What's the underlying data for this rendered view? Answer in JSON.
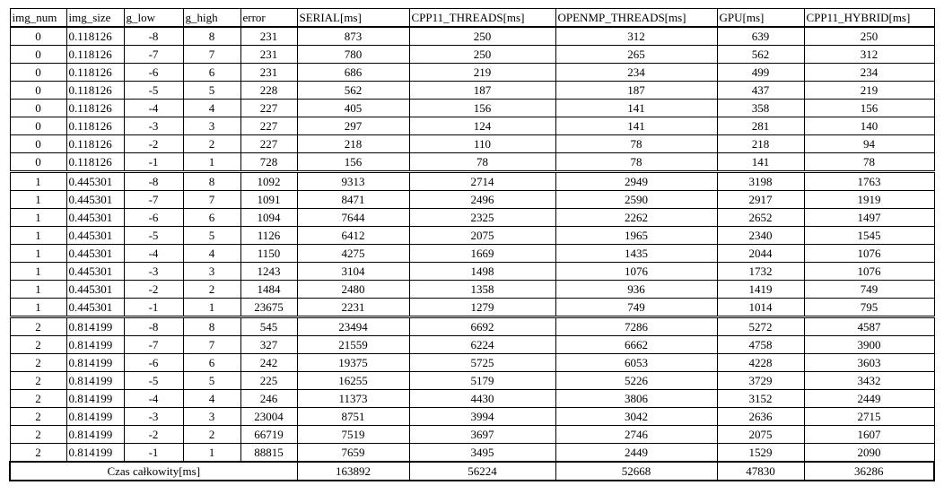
{
  "columns": [
    "img_num",
    "img_size",
    "g_low",
    "g_high",
    "error",
    "SERIAL[ms]",
    "CPP11_THREADS[ms]",
    "OPENMP_THREADS[ms]",
    "GPU[ms]",
    "CPP11_HYBRID[ms]"
  ],
  "rows": [
    [
      "0",
      "0.118126",
      "-8",
      "8",
      "231",
      "873",
      "250",
      "312",
      "639",
      "250"
    ],
    [
      "0",
      "0.118126",
      "-7",
      "7",
      "231",
      "780",
      "250",
      "265",
      "562",
      "312"
    ],
    [
      "0",
      "0.118126",
      "-6",
      "6",
      "231",
      "686",
      "219",
      "234",
      "499",
      "234"
    ],
    [
      "0",
      "0.118126",
      "-5",
      "5",
      "228",
      "562",
      "187",
      "187",
      "437",
      "219"
    ],
    [
      "0",
      "0.118126",
      "-4",
      "4",
      "227",
      "405",
      "156",
      "141",
      "358",
      "156"
    ],
    [
      "0",
      "0.118126",
      "-3",
      "3",
      "227",
      "297",
      "124",
      "141",
      "281",
      "140"
    ],
    [
      "0",
      "0.118126",
      "-2",
      "2",
      "227",
      "218",
      "110",
      "78",
      "218",
      "94"
    ],
    [
      "0",
      "0.118126",
      "-1",
      "1",
      "728",
      "156",
      "78",
      "78",
      "141",
      "78"
    ],
    [
      "1",
      "0.445301",
      "-8",
      "8",
      "1092",
      "9313",
      "2714",
      "2949",
      "3198",
      "1763"
    ],
    [
      "1",
      "0.445301",
      "-7",
      "7",
      "1091",
      "8471",
      "2496",
      "2590",
      "2917",
      "1919"
    ],
    [
      "1",
      "0.445301",
      "-6",
      "6",
      "1094",
      "7644",
      "2325",
      "2262",
      "2652",
      "1497"
    ],
    [
      "1",
      "0.445301",
      "-5",
      "5",
      "1126",
      "6412",
      "2075",
      "1965",
      "2340",
      "1545"
    ],
    [
      "1",
      "0.445301",
      "-4",
      "4",
      "1150",
      "4275",
      "1669",
      "1435",
      "2044",
      "1076"
    ],
    [
      "1",
      "0.445301",
      "-3",
      "3",
      "1243",
      "3104",
      "1498",
      "1076",
      "1732",
      "1076"
    ],
    [
      "1",
      "0.445301",
      "-2",
      "2",
      "1484",
      "2480",
      "1358",
      "936",
      "1419",
      "749"
    ],
    [
      "1",
      "0.445301",
      "-1",
      "1",
      "23675",
      "2231",
      "1279",
      "749",
      "1014",
      "795"
    ],
    [
      "2",
      "0.814199",
      "-8",
      "8",
      "545",
      "23494",
      "6692",
      "7286",
      "5272",
      "4587"
    ],
    [
      "2",
      "0.814199",
      "-7",
      "7",
      "327",
      "21559",
      "6224",
      "6662",
      "4758",
      "3900"
    ],
    [
      "2",
      "0.814199",
      "-6",
      "6",
      "242",
      "19375",
      "5725",
      "6053",
      "4228",
      "3603"
    ],
    [
      "2",
      "0.814199",
      "-5",
      "5",
      "225",
      "16255",
      "5179",
      "5226",
      "3729",
      "3432"
    ],
    [
      "2",
      "0.814199",
      "-4",
      "4",
      "246",
      "11373",
      "4430",
      "3806",
      "3152",
      "2449"
    ],
    [
      "2",
      "0.814199",
      "-3",
      "3",
      "23004",
      "8751",
      "3994",
      "3042",
      "2636",
      "2715"
    ],
    [
      "2",
      "0.814199",
      "-2",
      "2",
      "66719",
      "7519",
      "3697",
      "2746",
      "2075",
      "1607"
    ],
    [
      "2",
      "0.814199",
      "-1",
      "1",
      "88815",
      "7659",
      "3495",
      "2449",
      "1529",
      "2090"
    ]
  ],
  "group_start_rows": [
    8,
    16
  ],
  "total": {
    "label": "Czas całkowity[ms]",
    "values": [
      "163892",
      "56224",
      "52668",
      "47830",
      "36286"
    ]
  }
}
